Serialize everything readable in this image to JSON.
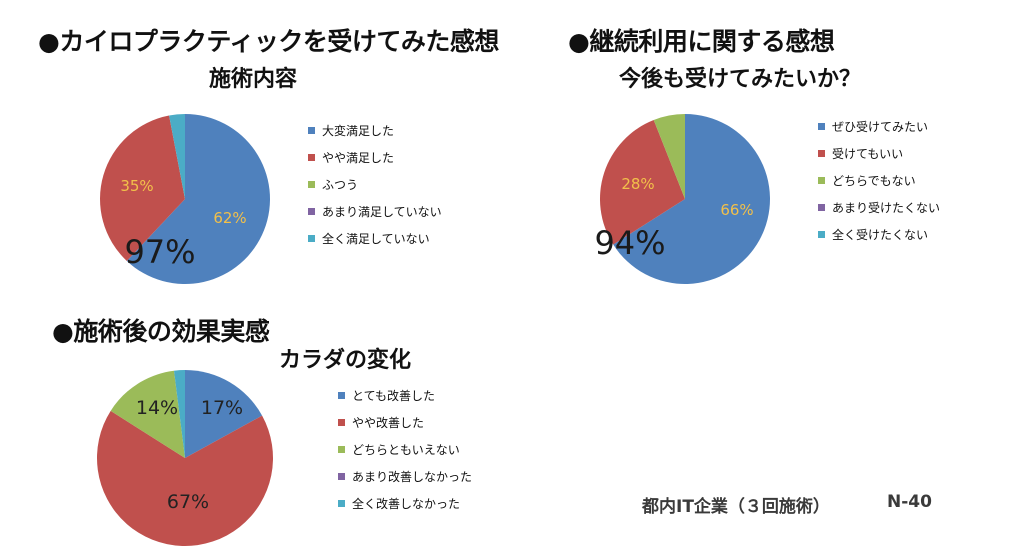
{
  "section1": {
    "heading": "●カイロプラクティックを受けてみた感想"
  },
  "section2": {
    "heading": "●継続利用に関する感想"
  },
  "section3": {
    "heading": "●施術後の効果実感"
  },
  "footer": {
    "org": "都内IT企業（３回施術）",
    "code": "N-40"
  },
  "colors": {
    "blue": "#4f81bd",
    "red": "#c0504d",
    "green": "#9bbb59",
    "purple": "#8064a2",
    "cyan": "#4bacc6"
  },
  "chart_data": [
    {
      "type": "pie",
      "title": "施術内容",
      "categories": [
        "大変満足した",
        "やや満足した",
        "ふつう",
        "あまり満足していない",
        "全く満足していない"
      ],
      "values": [
        62,
        35,
        0,
        0,
        3
      ],
      "data_labels": [
        "62%",
        "35%",
        "",
        "",
        ""
      ],
      "summary_label": "97%",
      "legend_position": "right"
    },
    {
      "type": "pie",
      "title": "今後も受けてみたいか？",
      "categories": [
        "ぜひ受けてみたい",
        "受けてもいい",
        "どちらでもない",
        "あまり受けたくない",
        "全く受けたくない"
      ],
      "values": [
        66,
        28,
        6,
        0,
        0
      ],
      "data_labels": [
        "66%",
        "28%",
        "",
        "",
        ""
      ],
      "summary_label": "94%",
      "legend_position": "right"
    },
    {
      "type": "pie",
      "title": "カラダの変化",
      "categories": [
        "とても改善した",
        "やや改善した",
        "どちらともいえない",
        "あまり改善しなかった",
        "全く改善しなかった"
      ],
      "values": [
        17,
        67,
        14,
        0,
        2
      ],
      "data_labels": [
        "17%",
        "67%",
        "14%",
        "",
        ""
      ],
      "summary_label": "",
      "legend_position": "right"
    }
  ]
}
